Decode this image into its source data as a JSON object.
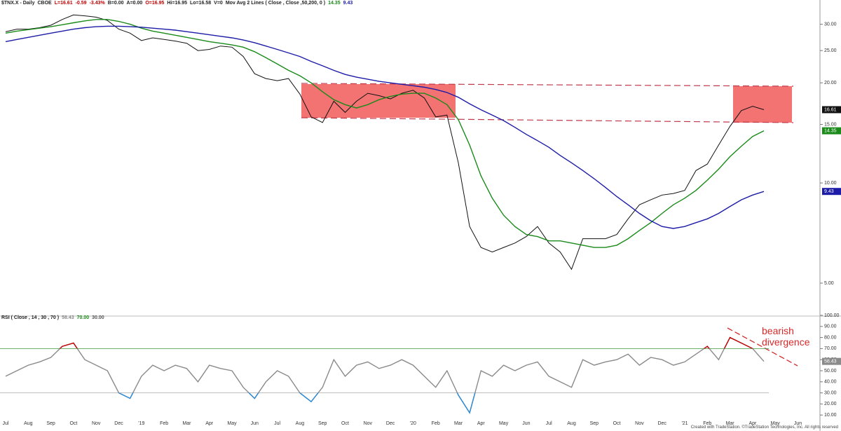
{
  "chart_data": [
    {
      "type": "line",
      "log_scale": true,
      "header": [
        {
          "text": "$TNX.X - Daily",
          "color": "#222222"
        },
        {
          "text": "CBOE",
          "color": "#222222"
        },
        {
          "text": "L=16.61",
          "color": "#c00000"
        },
        {
          "text": "-0.59",
          "color": "#c00000"
        },
        {
          "text": "-3.43%",
          "color": "#c00000"
        },
        {
          "text": "B=0.00",
          "color": "#222222"
        },
        {
          "text": "A=0.00",
          "color": "#222222"
        },
        {
          "text": "O=16.95",
          "color": "#c00000"
        },
        {
          "text": "Hi=16.95",
          "color": "#222222"
        },
        {
          "text": "Lo=16.58",
          "color": "#222222"
        },
        {
          "text": "V=0",
          "color": "#222222"
        },
        {
          "text": "Mov Avg 2 Lines ( Close , Close ,50,200, 0 )",
          "color": "#222222"
        },
        {
          "text": "14.35",
          "color": "#1a8a1a"
        },
        {
          "text": "9.43",
          "color": "#1a1aa8"
        }
      ],
      "ylim": [
        4.0,
        33.8
      ],
      "yticks": [
        {
          "value": 30,
          "label": "30.00"
        },
        {
          "value": 25,
          "label": "25.00"
        },
        {
          "value": 20,
          "label": "20.00"
        },
        {
          "value": 15,
          "label": "15.00"
        },
        {
          "value": 10,
          "label": "10.00"
        },
        {
          "value": 5,
          "label": "5.00"
        }
      ],
      "series": [
        {
          "color": "#111111",
          "box": "#111111",
          "values": [
            28.5,
            29.0,
            29.0,
            29.3,
            29.8,
            31.0,
            32.0,
            31.8,
            31.5,
            30.8,
            29.0,
            28.2,
            26.8,
            27.3,
            27.0,
            26.7,
            26.3,
            25.0,
            25.2,
            25.8,
            25.6,
            24.0,
            21.3,
            20.6,
            20.3,
            20.6,
            18.5,
            15.8,
            15.2,
            17.6,
            16.3,
            17.6,
            18.6,
            18.3,
            17.9,
            18.6,
            19.0,
            18.0,
            15.8,
            16.0,
            11.5,
            7.4,
            6.4,
            6.2,
            6.4,
            6.6,
            6.9,
            7.4,
            6.6,
            6.2,
            5.5,
            6.8,
            6.8,
            6.8,
            7.0,
            7.8,
            8.6,
            8.9,
            9.2,
            9.3,
            9.5,
            10.9,
            11.4,
            13.0,
            14.8,
            16.5,
            17.0,
            16.61,
            null,
            null,
            null,
            null
          ],
          "value_labels": [
            null,
            null,
            null,
            null,
            null,
            null,
            null,
            null,
            null,
            null,
            null,
            null,
            null,
            null,
            null,
            null,
            null,
            null,
            null,
            null,
            null,
            null,
            null,
            null,
            null,
            null,
            null,
            null,
            null,
            null,
            null,
            null,
            null,
            null,
            null,
            null,
            null,
            null,
            null,
            null,
            null,
            null,
            null,
            null,
            null,
            null,
            null,
            null,
            null,
            null,
            null,
            null,
            null,
            null,
            null,
            null,
            null,
            null,
            null,
            null,
            null,
            null,
            null,
            null,
            null,
            null,
            null,
            "16.61",
            null,
            null,
            null,
            null
          ]
        },
        {
          "color": "#1a8a1a",
          "box": "#1a8a1a",
          "values": [
            28.2,
            28.6,
            28.9,
            29.2,
            29.5,
            29.9,
            30.3,
            30.7,
            31.0,
            31.0,
            30.6,
            30.0,
            29.2,
            28.6,
            28.2,
            27.8,
            27.4,
            27.0,
            26.6,
            26.3,
            26.0,
            25.6,
            24.8,
            23.8,
            22.8,
            21.8,
            21.0,
            20.0,
            18.8,
            17.8,
            17.2,
            16.8,
            17.2,
            17.8,
            18.2,
            18.5,
            18.6,
            18.6,
            18.0,
            17.2,
            15.5,
            13.0,
            10.5,
            9.0,
            8.0,
            7.4,
            7.0,
            6.9,
            6.7,
            6.7,
            6.6,
            6.5,
            6.4,
            6.4,
            6.5,
            6.8,
            7.2,
            7.6,
            8.1,
            8.6,
            9.0,
            9.5,
            10.2,
            11.0,
            12.0,
            12.9,
            13.8,
            14.35,
            null,
            null,
            null,
            null
          ],
          "value_labels": [
            null,
            null,
            null,
            null,
            null,
            null,
            null,
            null,
            null,
            null,
            null,
            null,
            null,
            null,
            null,
            null,
            null,
            null,
            null,
            null,
            null,
            null,
            null,
            null,
            null,
            null,
            null,
            null,
            null,
            null,
            null,
            null,
            null,
            null,
            null,
            null,
            null,
            null,
            null,
            null,
            null,
            null,
            null,
            null,
            null,
            null,
            null,
            null,
            null,
            null,
            null,
            null,
            null,
            null,
            null,
            null,
            null,
            null,
            null,
            null,
            null,
            null,
            null,
            null,
            null,
            null,
            null,
            "14.35",
            null,
            null,
            null,
            null
          ]
        },
        {
          "color": "#1c1ca8",
          "box": "#1c1ca8",
          "values": [
            26.6,
            27.0,
            27.4,
            27.8,
            28.2,
            28.6,
            29.0,
            29.3,
            29.5,
            29.6,
            29.6,
            29.5,
            29.4,
            29.2,
            29.0,
            28.8,
            28.5,
            28.2,
            27.9,
            27.6,
            27.3,
            26.9,
            26.4,
            25.8,
            25.2,
            24.6,
            24.0,
            23.2,
            22.5,
            21.8,
            21.2,
            20.8,
            20.5,
            20.2,
            20.0,
            19.8,
            19.6,
            19.4,
            19.1,
            18.7,
            18.1,
            17.3,
            16.6,
            16.0,
            15.4,
            14.7,
            14.0,
            13.4,
            12.8,
            12.1,
            11.5,
            10.9,
            10.3,
            9.7,
            9.1,
            8.6,
            8.1,
            7.7,
            7.4,
            7.3,
            7.4,
            7.6,
            7.8,
            8.1,
            8.5,
            8.9,
            9.2,
            9.43,
            null,
            null,
            null,
            null
          ],
          "value_labels": [
            null,
            null,
            null,
            null,
            null,
            null,
            null,
            null,
            null,
            null,
            null,
            null,
            null,
            null,
            null,
            null,
            null,
            null,
            null,
            null,
            null,
            null,
            null,
            null,
            null,
            null,
            null,
            null,
            null,
            null,
            null,
            null,
            null,
            null,
            null,
            null,
            null,
            null,
            null,
            null,
            null,
            null,
            null,
            null,
            null,
            null,
            null,
            null,
            null,
            null,
            null,
            null,
            null,
            null,
            null,
            null,
            null,
            null,
            null,
            null,
            null,
            null,
            null,
            null,
            null,
            null,
            null,
            "9.43",
            null,
            null,
            null,
            null
          ]
        }
      ]
    },
    {
      "type": "line",
      "header": [
        {
          "text": "RSI ( Close , 14 , 30 , 70 )",
          "color": "#222222"
        },
        {
          "text": "58.43",
          "color": "#888888"
        },
        {
          "text": "70.00",
          "color": "#1a8a1a"
        },
        {
          "text": "30.00",
          "color": "#555555"
        }
      ],
      "ylim": [
        0,
        100
      ],
      "yticks": [
        {
          "value": 100,
          "label": "100.00"
        },
        {
          "value": 90,
          "label": "90.00"
        },
        {
          "value": 80,
          "label": "80.00"
        },
        {
          "value": 70,
          "label": "70.00"
        },
        {
          "value": 60,
          "label": "60.00"
        },
        {
          "value": 50,
          "label": "50.00"
        },
        {
          "value": 40,
          "label": "40.00"
        },
        {
          "value": 30,
          "label": "30.00"
        },
        {
          "value": 20,
          "label": "20.00"
        },
        {
          "value": 10,
          "label": "10.00"
        }
      ],
      "overbought": 70,
      "oversold": 30,
      "overbought_color": "#c00000",
      "oversold_color": "#2a8ad8",
      "overbought_line": "#3a9a3a",
      "oversold_line": "#aaaaaa",
      "categories": [
        "Jul",
        null,
        "Aug",
        null,
        "Sep",
        null,
        "Oct",
        null,
        "Nov",
        null,
        "Dec",
        null,
        "'19",
        null,
        "Feb",
        null,
        "Mar",
        null,
        "Apr",
        null,
        "May",
        null,
        "Jun",
        null,
        "Jul",
        null,
        "Aug",
        null,
        "Sep",
        null,
        "Oct",
        null,
        "Nov",
        null,
        "Dec",
        null,
        "'20",
        null,
        "Feb",
        null,
        "Mar",
        null,
        "Apr",
        null,
        "May",
        null,
        "Jun",
        null,
        "Jul",
        null,
        "Aug",
        null,
        "Sep",
        null,
        "Oct",
        null,
        "Nov",
        null,
        "Dec",
        null,
        "'21",
        null,
        "Feb",
        null,
        "Mar",
        null,
        "Apr",
        null,
        "May",
        null,
        "Jun",
        null
      ],
      "series": [
        {
          "color": "#8a8a8a",
          "box": "#8a8a8a",
          "values": [
            45,
            50,
            55,
            58,
            62,
            72,
            75,
            60,
            55,
            50,
            30,
            25,
            45,
            55,
            50,
            55,
            52,
            40,
            55,
            52,
            50,
            35,
            25,
            40,
            50,
            45,
            30,
            22,
            35,
            60,
            45,
            55,
            58,
            52,
            55,
            60,
            55,
            45,
            35,
            50,
            28,
            12,
            50,
            45,
            55,
            50,
            55,
            58,
            45,
            40,
            35,
            60,
            55,
            58,
            60,
            65,
            55,
            62,
            60,
            55,
            58,
            65,
            72,
            60,
            80,
            75,
            70,
            58.43,
            null,
            null,
            null,
            null
          ],
          "value_labels": [
            null,
            null,
            null,
            null,
            null,
            null,
            null,
            null,
            null,
            null,
            null,
            null,
            null,
            null,
            null,
            null,
            null,
            null,
            null,
            null,
            null,
            null,
            null,
            null,
            null,
            null,
            null,
            null,
            null,
            null,
            null,
            null,
            null,
            null,
            null,
            null,
            null,
            null,
            null,
            null,
            null,
            null,
            null,
            null,
            null,
            null,
            null,
            null,
            null,
            null,
            null,
            null,
            null,
            null,
            null,
            null,
            null,
            null,
            null,
            null,
            null,
            null,
            null,
            null,
            null,
            null,
            null,
            "58.43",
            null,
            null,
            null,
            null
          ]
        }
      ],
      "annotation": "bearish divergence"
    }
  ],
  "footer": "Created with TradeStation. ©TradeStation Technologies, Inc. All rights reserved"
}
